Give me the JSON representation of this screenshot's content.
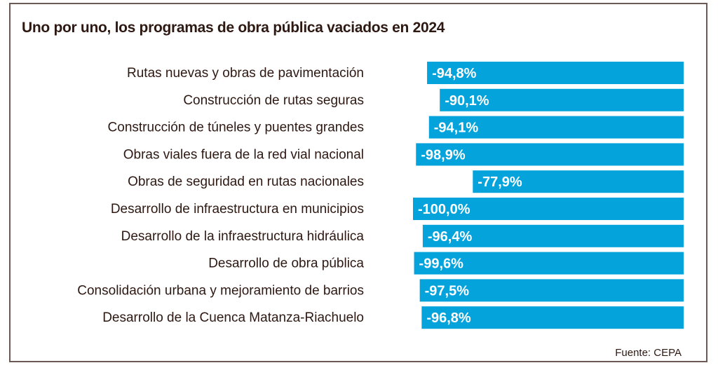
{
  "chart_data": {
    "type": "bar",
    "orientation": "horizontal",
    "title": "Uno por uno, los programas de obra pública vaciados en 2024",
    "xlabel": "",
    "ylabel": "",
    "xlim": [
      -100,
      0
    ],
    "grid": false,
    "legend": "none",
    "bar_color": "#05a3dc",
    "categories": [
      "Rutas nuevas y obras de pavimentación",
      "Construcción de rutas seguras",
      "Construcción de túneles y puentes grandes",
      "Obras viales fuera de la red vial nacional",
      "Obras de seguridad en rutas nacionales",
      "Desarrollo de infraestructura en municipios",
      "Desarrollo de la infraestructura hidráulica",
      "Desarrollo de obra pública",
      "Consolidación urbana y mejoramiento de barrios",
      "Desarrollo de la Cuenca Matanza-Riachuelo"
    ],
    "values": [
      -94.8,
      -90.1,
      -94.1,
      -98.9,
      -77.9,
      -100.0,
      -96.4,
      -99.6,
      -97.5,
      -96.8
    ],
    "value_labels": [
      "-94,8%",
      "-90,1%",
      "-94,1%",
      "-98,9%",
      "-77,9%",
      "-100,0%",
      "-96,4%",
      "-99,6%",
      "-97,5%",
      "-96,8%"
    ],
    "source": "Fuente: CEPA"
  }
}
